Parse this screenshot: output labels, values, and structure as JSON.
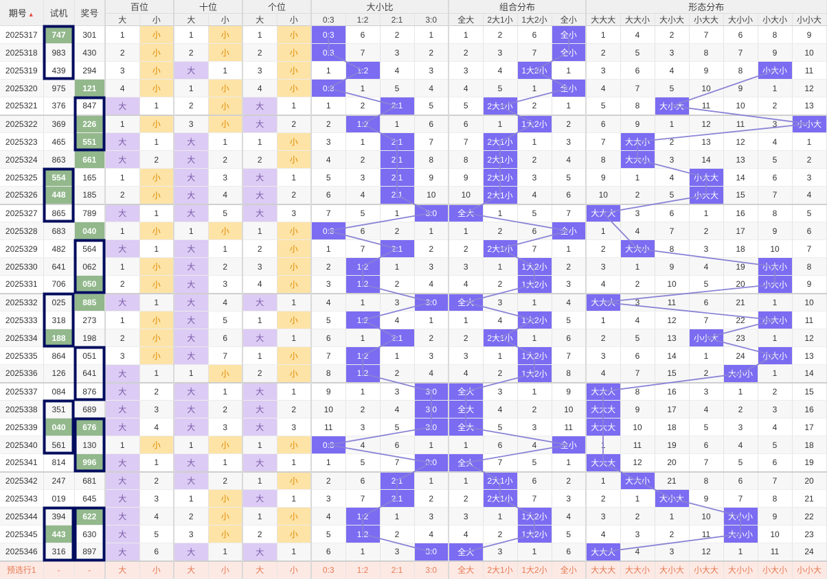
{
  "header": {
    "groups": [
      "期号",
      "试机",
      "奖号",
      "百位",
      "十位",
      "个位",
      "大小比",
      "组合分布",
      "形态分布"
    ],
    "sub": [
      "大",
      "小",
      "大",
      "小",
      "大",
      "小",
      "0:3",
      "1:2",
      "2:1",
      "3:0",
      "全大",
      "2大1小",
      "1大2小",
      "全小",
      "大大大",
      "大大小",
      "大小大",
      "小大大",
      "大小小",
      "小大小",
      "小小大"
    ],
    "sort_icon": "sort-icon"
  },
  "rows": [
    [
      "2025317",
      "747",
      "301",
      "1",
      "小",
      "1",
      "小",
      "1",
      "小",
      "0:3",
      "6",
      "2",
      "1",
      "1",
      "2",
      "6",
      "全小",
      "1",
      "4",
      "2",
      "7",
      "6",
      "8",
      "9"
    ],
    [
      "2025318",
      "983",
      "430",
      "2",
      "小",
      "2",
      "小",
      "2",
      "小",
      "0:3",
      "7",
      "3",
      "2",
      "2",
      "3",
      "7",
      "全小",
      "2",
      "5",
      "3",
      "8",
      "7",
      "9",
      "10"
    ],
    [
      "2025319",
      "439",
      "294",
      "3",
      "小",
      "大",
      "1",
      "3",
      "小",
      "1",
      "1:2",
      "4",
      "3",
      "3",
      "4",
      "1大2小",
      "1",
      "3",
      "6",
      "4",
      "9",
      "8",
      "小大小",
      "11"
    ],
    [
      "2025320",
      "975",
      "121",
      "4",
      "小",
      "1",
      "小",
      "4",
      "小",
      "0:3",
      "1",
      "5",
      "4",
      "4",
      "5",
      "1",
      "全小",
      "4",
      "7",
      "5",
      "10",
      "9",
      "1",
      "12"
    ],
    [
      "2025321",
      "376",
      "847",
      "大",
      "1",
      "2",
      "小",
      "大",
      "1",
      "1",
      "2",
      "2:1",
      "5",
      "5",
      "2大1小",
      "2",
      "1",
      "5",
      "8",
      "大小大",
      "11",
      "10",
      "2",
      "13"
    ],
    [
      "2025322",
      "369",
      "226",
      "1",
      "小",
      "3",
      "小",
      "大",
      "2",
      "2",
      "1:2",
      "1",
      "6",
      "6",
      "1",
      "1大2小",
      "2",
      "6",
      "9",
      "1",
      "12",
      "11",
      "3",
      "小小大"
    ],
    [
      "2025323",
      "465",
      "551",
      "大",
      "1",
      "大",
      "1",
      "1",
      "小",
      "3",
      "1",
      "2:1",
      "7",
      "7",
      "2大1小",
      "1",
      "3",
      "7",
      "大大小",
      "2",
      "13",
      "12",
      "4",
      "1"
    ],
    [
      "2025324",
      "863",
      "661",
      "大",
      "2",
      "大",
      "2",
      "2",
      "小",
      "4",
      "2",
      "2:1",
      "8",
      "8",
      "2大1小",
      "2",
      "4",
      "8",
      "大大小",
      "3",
      "14",
      "13",
      "5",
      "2"
    ],
    [
      "2025325",
      "554",
      "165",
      "1",
      "小",
      "大",
      "3",
      "大",
      "1",
      "5",
      "3",
      "2:1",
      "9",
      "9",
      "2大1小",
      "3",
      "5",
      "9",
      "1",
      "4",
      "小大大",
      "14",
      "6",
      "3"
    ],
    [
      "2025326",
      "448",
      "185",
      "2",
      "小",
      "大",
      "4",
      "大",
      "2",
      "6",
      "4",
      "2:1",
      "10",
      "10",
      "2大1小",
      "4",
      "6",
      "10",
      "2",
      "5",
      "小大大",
      "15",
      "7",
      "4"
    ],
    [
      "2025327",
      "865",
      "789",
      "大",
      "1",
      "大",
      "5",
      "大",
      "3",
      "7",
      "5",
      "1",
      "3:0",
      "全大",
      "1",
      "5",
      "7",
      "大大大",
      "3",
      "6",
      "1",
      "16",
      "8",
      "5"
    ],
    [
      "2025328",
      "683",
      "040",
      "1",
      "小",
      "1",
      "小",
      "1",
      "小",
      "0:3",
      "6",
      "2",
      "1",
      "1",
      "2",
      "6",
      "全小",
      "1",
      "4",
      "7",
      "2",
      "17",
      "9",
      "6"
    ],
    [
      "2025329",
      "482",
      "564",
      "大",
      "1",
      "大",
      "1",
      "2",
      "小",
      "1",
      "7",
      "2:1",
      "2",
      "2",
      "2大1小",
      "7",
      "1",
      "2",
      "大大小",
      "8",
      "3",
      "18",
      "10",
      "7"
    ],
    [
      "2025330",
      "641",
      "062",
      "1",
      "小",
      "大",
      "2",
      "3",
      "小",
      "2",
      "1:2",
      "1",
      "3",
      "3",
      "1",
      "1大2小",
      "2",
      "3",
      "1",
      "9",
      "4",
      "19",
      "小大小",
      "8"
    ],
    [
      "2025331",
      "706",
      "050",
      "2",
      "小",
      "大",
      "3",
      "4",
      "小",
      "3",
      "1:2",
      "2",
      "4",
      "4",
      "2",
      "1大2小",
      "3",
      "4",
      "2",
      "10",
      "5",
      "20",
      "小大小",
      "9"
    ],
    [
      "2025332",
      "025",
      "885",
      "大",
      "1",
      "大",
      "4",
      "大",
      "1",
      "4",
      "1",
      "3",
      "3:0",
      "全大",
      "3",
      "1",
      "4",
      "大大大",
      "3",
      "11",
      "6",
      "21",
      "1",
      "10"
    ],
    [
      "2025333",
      "318",
      "273",
      "1",
      "小",
      "大",
      "5",
      "1",
      "小",
      "5",
      "1:2",
      "4",
      "1",
      "1",
      "4",
      "1大2小",
      "5",
      "1",
      "4",
      "12",
      "7",
      "22",
      "小大小",
      "11"
    ],
    [
      "2025334",
      "188",
      "198",
      "2",
      "小",
      "大",
      "6",
      "大",
      "1",
      "6",
      "1",
      "2:1",
      "2",
      "2",
      "2大1小",
      "1",
      "6",
      "2",
      "5",
      "13",
      "小小大",
      "23",
      "1",
      "12"
    ],
    [
      "2025335",
      "864",
      "051",
      "3",
      "小",
      "大",
      "7",
      "1",
      "小",
      "7",
      "1:2",
      "1",
      "3",
      "3",
      "1",
      "1大2小",
      "7",
      "3",
      "6",
      "14",
      "1",
      "24",
      "小大小",
      "13"
    ],
    [
      "2025336",
      "126",
      "641",
      "大",
      "1",
      "1",
      "小",
      "2",
      "小",
      "8",
      "1:2",
      "2",
      "4",
      "4",
      "2",
      "1大2小",
      "8",
      "4",
      "7",
      "15",
      "2",
      "大小小",
      "1",
      "14"
    ],
    [
      "2025337",
      "084",
      "876",
      "大",
      "2",
      "大",
      "1",
      "大",
      "1",
      "9",
      "1",
      "3",
      "3:0",
      "全大",
      "3",
      "1",
      "9",
      "大大大",
      "8",
      "16",
      "3",
      "1",
      "2",
      "15"
    ],
    [
      "2025338",
      "351",
      "689",
      "大",
      "3",
      "大",
      "2",
      "大",
      "2",
      "10",
      "2",
      "4",
      "3:0",
      "全大",
      "4",
      "2",
      "10",
      "大大大",
      "9",
      "17",
      "4",
      "2",
      "3",
      "16"
    ],
    [
      "2025339",
      "040",
      "676",
      "大",
      "4",
      "大",
      "3",
      "大",
      "3",
      "11",
      "3",
      "5",
      "3:0",
      "全大",
      "5",
      "3",
      "11",
      "大大大",
      "10",
      "18",
      "5",
      "3",
      "4",
      "17"
    ],
    [
      "2025340",
      "561",
      "130",
      "1",
      "小",
      "1",
      "小",
      "1",
      "小",
      "0:3",
      "4",
      "6",
      "1",
      "1",
      "6",
      "4",
      "全小",
      "1",
      "11",
      "19",
      "6",
      "4",
      "5",
      "18"
    ],
    [
      "2025341",
      "814",
      "996",
      "大",
      "1",
      "大",
      "1",
      "大",
      "1",
      "1",
      "5",
      "7",
      "3:0",
      "全大",
      "7",
      "5",
      "1",
      "大大大",
      "12",
      "20",
      "7",
      "5",
      "6",
      "19"
    ],
    [
      "2025342",
      "247",
      "681",
      "大",
      "2",
      "大",
      "2",
      "1",
      "小",
      "2",
      "6",
      "2:1",
      "1",
      "1",
      "2大1小",
      "6",
      "2",
      "1",
      "大大小",
      "21",
      "8",
      "6",
      "7",
      "20"
    ],
    [
      "2025343",
      "019",
      "645",
      "大",
      "3",
      "1",
      "小",
      "大",
      "1",
      "3",
      "7",
      "2:1",
      "2",
      "2",
      "2大1小",
      "7",
      "3",
      "2",
      "1",
      "大小大",
      "9",
      "7",
      "8",
      "21"
    ],
    [
      "2025344",
      "394",
      "622",
      "大",
      "4",
      "2",
      "小",
      "1",
      "小",
      "4",
      "1:2",
      "1",
      "3",
      "3",
      "1",
      "1大2小",
      "4",
      "3",
      "2",
      "1",
      "10",
      "大小小",
      "9",
      "22"
    ],
    [
      "2025345",
      "443",
      "630",
      "大",
      "5",
      "3",
      "小",
      "2",
      "小",
      "5",
      "1:2",
      "2",
      "4",
      "4",
      "2",
      "1大2小",
      "5",
      "4",
      "3",
      "2",
      "11",
      "大小小",
      "10",
      "23"
    ],
    [
      "2025346",
      "316",
      "897",
      "大",
      "6",
      "大",
      "1",
      "大",
      "1",
      "6",
      "1",
      "3",
      "3:0",
      "全大",
      "3",
      "1",
      "6",
      "大大大",
      "4",
      "3",
      "12",
      "1",
      "11",
      "24"
    ]
  ],
  "preset_row": [
    "预选行1",
    "-",
    "-",
    "大",
    "小",
    "大",
    "小",
    "大",
    "小",
    "0:3",
    "1:2",
    "2:1",
    "3:0",
    "全大",
    "2大1小",
    "1大2小",
    "全小",
    "大大大",
    "大大小",
    "大小大",
    "小大大",
    "大小小",
    "小大小",
    "小小大"
  ],
  "colors": {
    "highlight": "#92b88c",
    "small": "#fde3a6",
    "big": "#dccbf4",
    "pattern": "#7b6cf2",
    "box": "#000c5e",
    "line": "#8a83d6"
  }
}
